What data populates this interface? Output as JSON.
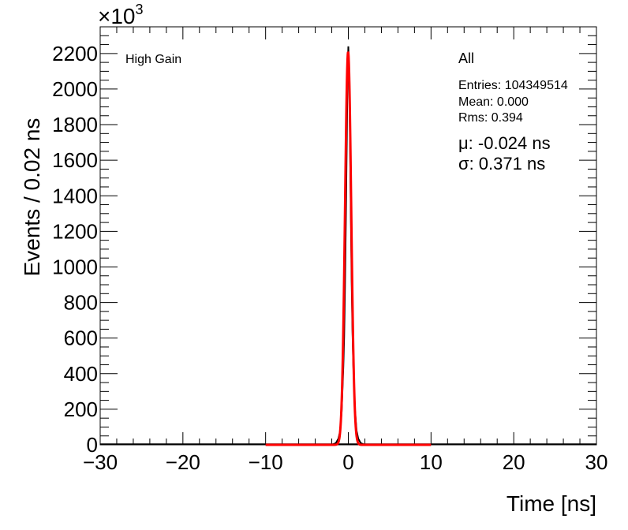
{
  "chart_data": {
    "type": "line",
    "xlabel": "Time [ns]",
    "ylabel": "Events / 0.02 ns",
    "y_multiplier": "×10",
    "y_multiplier_exp": "3",
    "xlim": [
      -30,
      30
    ],
    "ylim": [
      0,
      2350
    ],
    "x_ticks": [
      -30,
      -20,
      -10,
      0,
      10,
      20,
      30
    ],
    "x_tick_labels": [
      "−30",
      "−20",
      "−10",
      "0",
      "10",
      "20",
      "30"
    ],
    "y_ticks": [
      0,
      200,
      400,
      600,
      800,
      1000,
      1200,
      1400,
      1600,
      1800,
      2000,
      2200
    ],
    "y_tick_labels": [
      "0",
      "200",
      "400",
      "600",
      "800",
      "1000",
      "1200",
      "1400",
      "1600",
      "1800",
      "2000",
      "2200"
    ],
    "grid": false,
    "series": [
      {
        "color": "#000000",
        "x": [
          -2.0,
          -1.5,
          -1.2,
          -1.0,
          -0.8,
          -0.6,
          -0.5,
          -0.4,
          -0.3,
          -0.2,
          -0.1,
          0.0,
          0.1,
          0.2,
          0.3,
          0.4,
          0.5,
          0.6,
          0.8,
          1.0,
          1.2,
          1.5,
          2.0
        ],
        "y": [
          0,
          10,
          35,
          75,
          190,
          440,
          610,
          900,
          1250,
          1650,
          2050,
          2240,
          2100,
          1720,
          1300,
          920,
          640,
          450,
          200,
          80,
          35,
          10,
          0
        ]
      },
      {
        "color": "#ff0000",
        "fit": "gaus",
        "range": [
          -10,
          10
        ],
        "amplitude": 2210,
        "mean": -0.024,
        "sigma": 0.371
      }
    ]
  },
  "labels": {
    "gain": "High Gain",
    "stats_title": "All",
    "entries": "Entries: 104349514",
    "mean": "Mean: 0.000",
    "rms": "Rms: 0.394",
    "fit_mu": "μ: -0.024 ns",
    "fit_sigma": "σ: 0.371 ns"
  },
  "colors": {
    "fit": "#ff0000",
    "histogram": "#000000",
    "axes": "#000000",
    "background": "#ffffff"
  }
}
